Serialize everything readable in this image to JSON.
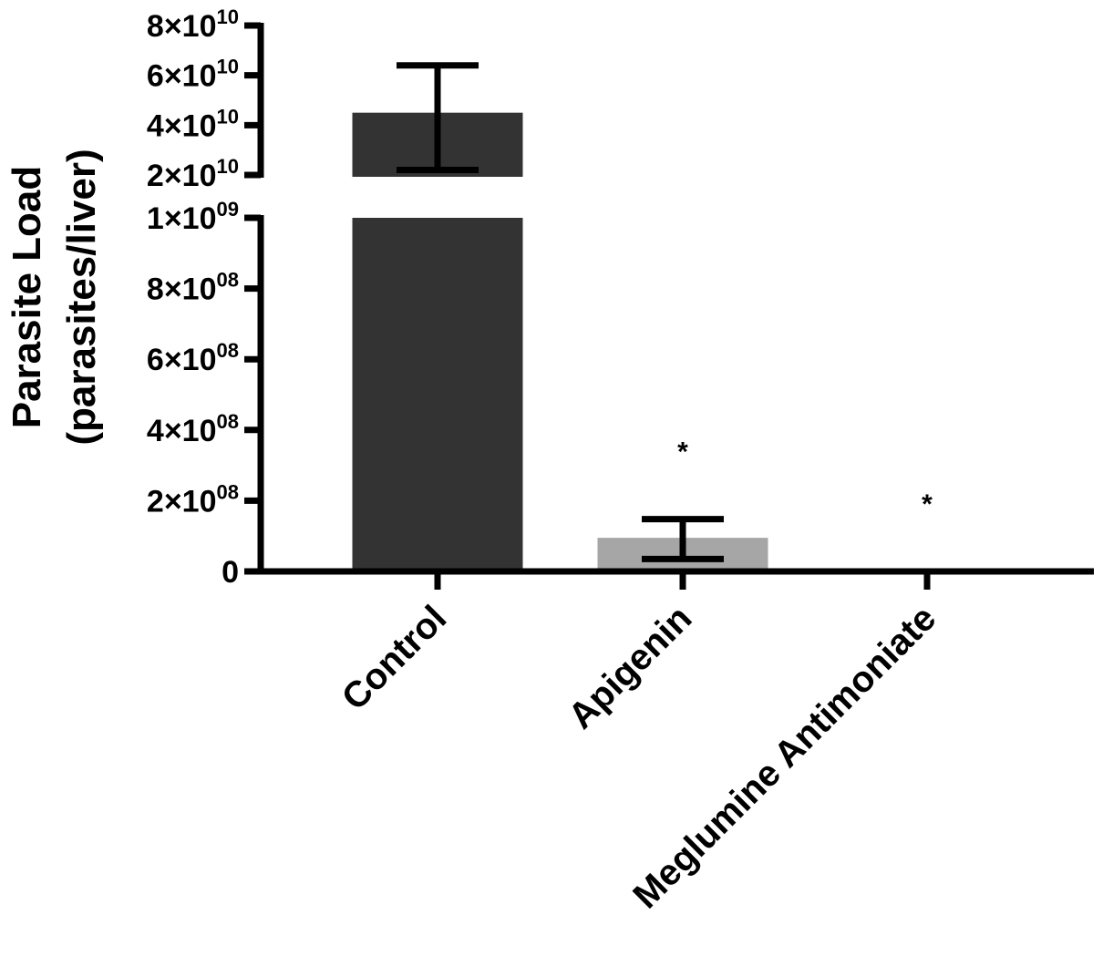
{
  "chart_data": {
    "type": "bar",
    "ylabel_line1": "Parasite Load",
    "ylabel_line2": "(parasites/liver)",
    "categories": [
      "Control",
      "Apigenin",
      "Meglumine Antimoniate"
    ],
    "values": [
      45000000000,
      95000000,
      0
    ],
    "error_low": [
      22000000000,
      35000000,
      0
    ],
    "error_high": [
      64000000000,
      148000000,
      0
    ],
    "significance": [
      "",
      "*",
      "*"
    ],
    "bar_colors": [
      "#333333",
      "#a6a6a6",
      "#a6a6a6"
    ],
    "axis_break": true,
    "ylim_lower": [
      0,
      1000000000
    ],
    "ylim_upper": [
      20000000000,
      80000000000
    ],
    "yticks_lower": [
      {
        "value": 0,
        "mant": "0",
        "exp": ""
      },
      {
        "value": 200000000,
        "mant": "2×10",
        "exp": "08"
      },
      {
        "value": 400000000,
        "mant": "4×10",
        "exp": "08"
      },
      {
        "value": 600000000,
        "mant": "6×10",
        "exp": "08"
      },
      {
        "value": 800000000,
        "mant": "8×10",
        "exp": "08"
      },
      {
        "value": 1000000000,
        "mant": "1×10",
        "exp": "09"
      }
    ],
    "yticks_upper": [
      {
        "value": 20000000000,
        "mant": "2×10",
        "exp": "10"
      },
      {
        "value": 40000000000,
        "mant": "4×10",
        "exp": "10"
      },
      {
        "value": 60000000000,
        "mant": "6×10",
        "exp": "10"
      },
      {
        "value": 80000000000,
        "mant": "8×10",
        "exp": "10"
      }
    ]
  }
}
